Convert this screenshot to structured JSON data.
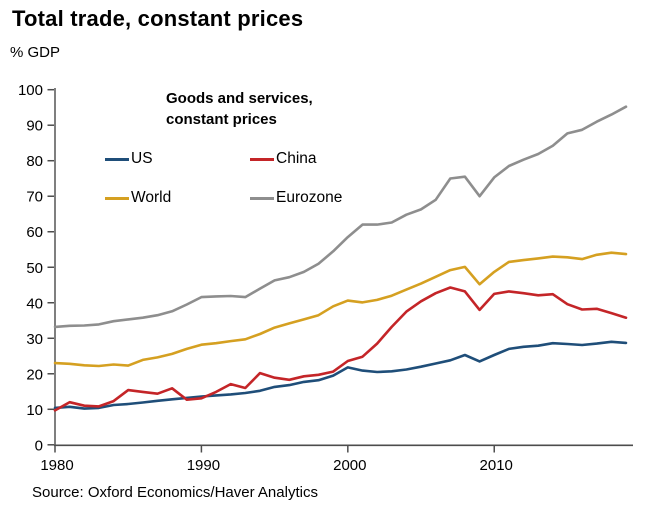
{
  "page": {
    "title": "Total trade, constant prices",
    "unit_label": "% GDP",
    "source": "Source: Oxford Economics/Haver Analytics"
  },
  "chart_data": {
    "type": "line",
    "title": "Total trade, constant prices",
    "ylabel": "% GDP",
    "annotation": [
      "Goods and services,",
      "constant prices"
    ],
    "grid": false,
    "legend_position": "inside-top-left",
    "ylim": [
      0,
      100
    ],
    "ytick_step": 10,
    "xticks": [
      1980,
      1990,
      2000,
      2010
    ],
    "years": [
      1980,
      1981,
      1982,
      1983,
      1984,
      1985,
      1986,
      1987,
      1988,
      1989,
      1990,
      1991,
      1992,
      1993,
      1994,
      1995,
      1996,
      1997,
      1998,
      1999,
      2000,
      2001,
      2002,
      2003,
      2004,
      2005,
      2006,
      2007,
      2008,
      2009,
      2010,
      2011,
      2012,
      2013,
      2014,
      2015,
      2016,
      2017,
      2018,
      2019
    ],
    "series": [
      {
        "name": "US",
        "color": "#1f4e79",
        "values": [
          10.4,
          10.7,
          10.2,
          10.4,
          11.2,
          11.5,
          11.9,
          12.4,
          12.8,
          13.2,
          13.6,
          13.9,
          14.2,
          14.6,
          15.2,
          16.3,
          16.8,
          17.7,
          18.2,
          19.5,
          21.8,
          20.9,
          20.5,
          20.7,
          21.2,
          22.0,
          22.9,
          23.8,
          25.3,
          23.5,
          25.3,
          27.0,
          27.6,
          27.9,
          28.6,
          28.4,
          28.1,
          28.5,
          29.0,
          28.7
        ]
      },
      {
        "name": "China",
        "color": "#c42528",
        "values": [
          9.7,
          12.0,
          11.0,
          10.8,
          12.3,
          15.4,
          14.9,
          14.4,
          15.9,
          12.7,
          13.1,
          14.9,
          17.1,
          16.0,
          20.2,
          18.9,
          18.3,
          19.3,
          19.7,
          20.6,
          23.6,
          24.8,
          28.5,
          33.2,
          37.5,
          40.4,
          42.7,
          44.3,
          43.2,
          38.0,
          42.5,
          43.2,
          42.7,
          42.1,
          42.4,
          39.6,
          38.1,
          38.3,
          37.1,
          35.8
        ]
      },
      {
        "name": "World",
        "color": "#d5a021",
        "values": [
          23.0,
          22.8,
          22.4,
          22.2,
          22.6,
          22.3,
          23.9,
          24.6,
          25.6,
          27.0,
          28.2,
          28.6,
          29.2,
          29.7,
          31.2,
          33.0,
          34.2,
          35.3,
          36.5,
          39.0,
          40.6,
          40.1,
          40.8,
          42.0,
          43.7,
          45.4,
          47.3,
          49.2,
          50.1,
          45.2,
          48.7,
          51.5,
          52.0,
          52.5,
          53.0,
          52.8,
          52.3,
          53.5,
          54.1,
          53.7
        ]
      },
      {
        "name": "Eurozone",
        "color": "#8e8e8e",
        "values": [
          33.2,
          33.5,
          33.6,
          33.9,
          34.8,
          35.3,
          35.8,
          36.5,
          37.6,
          39.5,
          41.6,
          41.8,
          41.9,
          41.6,
          44.0,
          46.3,
          47.2,
          48.7,
          51.0,
          54.5,
          58.5,
          62.0,
          62.0,
          62.6,
          64.8,
          66.3,
          69.0,
          75.0,
          75.5,
          70.0,
          75.3,
          78.5,
          80.3,
          81.9,
          84.2,
          87.7,
          88.7,
          91.0,
          93.0,
          95.2
        ]
      }
    ]
  }
}
